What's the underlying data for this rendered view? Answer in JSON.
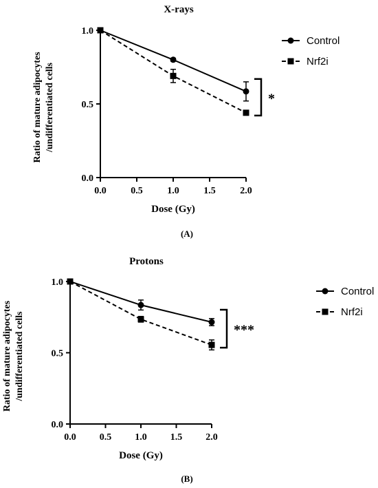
{
  "chart_data": [
    {
      "type": "line",
      "title": "X-rays",
      "xlabel": "Dose (Gy)",
      "ylabel_lines": [
        "Ratio of mature adipocytes",
        "/undifferentiated cells"
      ],
      "panel_label": "(A)",
      "xlim": [
        0.0,
        2.0
      ],
      "ylim": [
        0.0,
        1.0
      ],
      "x_ticks": [
        "0.0",
        "0.5",
        "1.0",
        "1.5",
        "2.0"
      ],
      "y_ticks": [
        "0.0",
        "0.5",
        "1.0"
      ],
      "significance": "*",
      "legend_position": "top-right",
      "series": [
        {
          "name": "Control",
          "marker": "circle",
          "line": "solid",
          "x": [
            0,
            1,
            2
          ],
          "values": [
            1.0,
            0.8,
            0.585
          ],
          "error": [
            0,
            0.01,
            0.065
          ]
        },
        {
          "name": "Nrf2i",
          "marker": "square",
          "line": "dashed",
          "x": [
            0,
            1,
            2
          ],
          "values": [
            1.0,
            0.69,
            0.44
          ],
          "error": [
            0,
            0.045,
            0.01
          ]
        }
      ]
    },
    {
      "type": "line",
      "title": "Protons",
      "xlabel": "Dose (Gy)",
      "ylabel_lines": [
        "Ratio of mature adipocytes",
        "/undifferentiated cells"
      ],
      "panel_label": "(B)",
      "xlim": [
        0.0,
        2.0
      ],
      "ylim": [
        0.0,
        1.0
      ],
      "x_ticks": [
        "0.0",
        "0.5",
        "1.0",
        "1.5",
        "2.0"
      ],
      "y_ticks": [
        "0.0",
        "0.5",
        "1.0"
      ],
      "significance": "***",
      "legend_position": "top-right",
      "series": [
        {
          "name": "Control",
          "marker": "circle",
          "line": "solid",
          "x": [
            0,
            1,
            2
          ],
          "values": [
            1.0,
            0.835,
            0.715
          ],
          "error": [
            0,
            0.035,
            0.025
          ]
        },
        {
          "name": "Nrf2i",
          "marker": "square",
          "line": "dashed",
          "x": [
            0,
            1,
            2
          ],
          "values": [
            1.0,
            0.735,
            0.555
          ],
          "error": [
            0,
            0.02,
            0.035
          ]
        }
      ]
    }
  ]
}
